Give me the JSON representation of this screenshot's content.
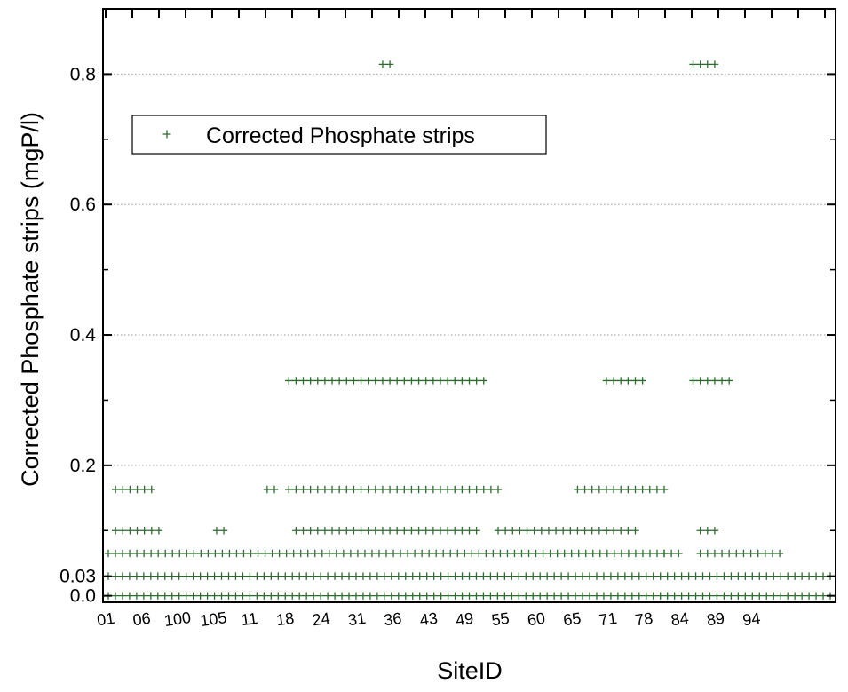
{
  "colors": {
    "marker": "#2e6b2e",
    "axis": "#000000",
    "grid": "#9a9a9a",
    "background": "#ffffff"
  },
  "chart_data": {
    "type": "scatter",
    "title": "",
    "xlabel": "SiteID",
    "ylabel": "Corrected Phosphate strips (mgP/l)",
    "x_axis_type": "categorical",
    "x_tick_labels": [
      "01",
      "06",
      "100",
      "105",
      "11",
      "18",
      "24",
      "31",
      "36",
      "43",
      "49",
      "55",
      "60",
      "65",
      "71",
      "78",
      "84",
      "89",
      "94"
    ],
    "ylim": [
      -0.01,
      0.9
    ],
    "y_ticks": [
      0.0,
      0.03,
      0.2,
      0.4,
      0.6,
      0.8
    ],
    "y_tick_labels": [
      "0.0",
      "0.03",
      "0.2",
      "0.4",
      "0.6",
      "0.8"
    ],
    "y_grid_lines": [
      0.2,
      0.4,
      0.6,
      0.8
    ],
    "grid": "horizontal dotted at major ticks",
    "marker": "+",
    "legend": {
      "position": "upper-left",
      "entries": [
        "Corrected Phosphate strips"
      ]
    },
    "series": [
      {
        "name": "Corrected Phosphate strips",
        "level_ranges": [
          {
            "y": 0.0,
            "segments": [
              [
                0,
                1
              ]
            ]
          },
          {
            "y": 0.03,
            "segments": [
              [
                0,
                1
              ]
            ]
          },
          {
            "y": 0.065,
            "segments": [
              [
                0,
                0.77
              ],
              [
                0.77,
                0.79
              ],
              [
                0.82,
                0.93
              ]
            ]
          },
          {
            "y": 0.1,
            "segments": [
              [
                0.01,
                0.07
              ],
              [
                0.15,
                0.16
              ],
              [
                0.26,
                0.51
              ],
              [
                0.54,
                0.63
              ],
              [
                0.64,
                0.69
              ],
              [
                0.69,
                0.73
              ],
              [
                0.82,
                0.84
              ]
            ]
          },
          {
            "y": 0.163,
            "segments": [
              [
                0.01,
                0.06
              ],
              [
                0.22,
                0.23
              ],
              [
                0.25,
                0.54
              ],
              [
                0.65,
                0.77
              ]
            ]
          },
          {
            "y": 0.33,
            "segments": [
              [
                0.25,
                0.52
              ],
              [
                0.69,
                0.74
              ],
              [
                0.81,
                0.86
              ]
            ]
          },
          {
            "y": 0.815,
            "segments": [
              [
                0.38,
                0.39
              ],
              [
                0.81,
                0.84
              ]
            ]
          }
        ]
      }
    ]
  }
}
